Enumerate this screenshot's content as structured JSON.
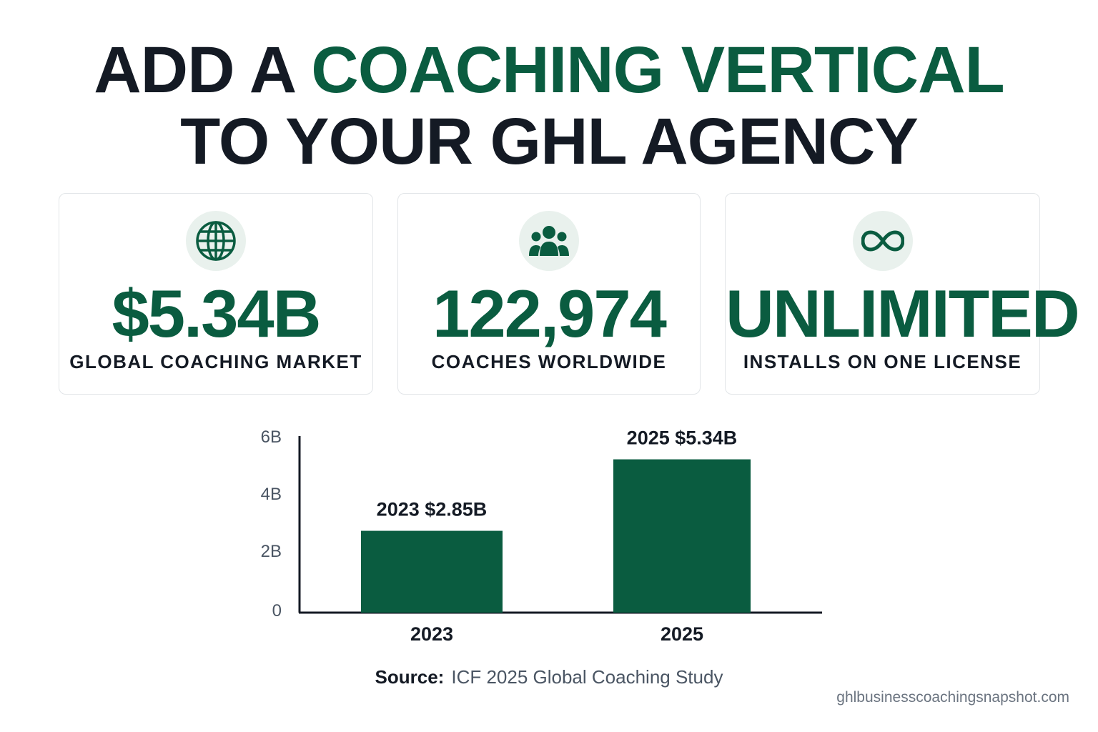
{
  "headline": {
    "line1_prefix": "ADD A",
    "line1_accent": "COACHING VERTICAL",
    "line2": "TO YOUR GHL AGENCY"
  },
  "cards": [
    {
      "icon": "globe-icon",
      "value": "$5.34B",
      "caption": "GLOBAL COACHING MARKET"
    },
    {
      "icon": "people-icon",
      "value": "122,974",
      "caption": "COACHES WORLDWIDE"
    },
    {
      "icon": "infinity-icon",
      "value": "UNLIMITED",
      "caption": "INSTALLS ON ONE LICENSE"
    }
  ],
  "colors": {
    "accent": "#0a5c40",
    "text": "#141a24",
    "icon_bg": "#e9f1ed"
  },
  "chart_data": {
    "type": "bar",
    "categories": [
      "2023",
      "2025"
    ],
    "values": [
      2.85,
      5.34
    ],
    "value_labels": [
      "2023 $2.85B",
      "2025 $5.34B"
    ],
    "yticks": [
      "0",
      "2B",
      "4B",
      "6B"
    ],
    "ytick_values": [
      0,
      2,
      4,
      6
    ],
    "ylim": [
      0,
      6.4
    ],
    "grid": false,
    "bar_color": "#0a5c40"
  },
  "source": {
    "label": "Source:",
    "text": "ICF 2025 Global Coaching Study"
  },
  "site": "ghlbusinesscoachingsnapshot.com"
}
